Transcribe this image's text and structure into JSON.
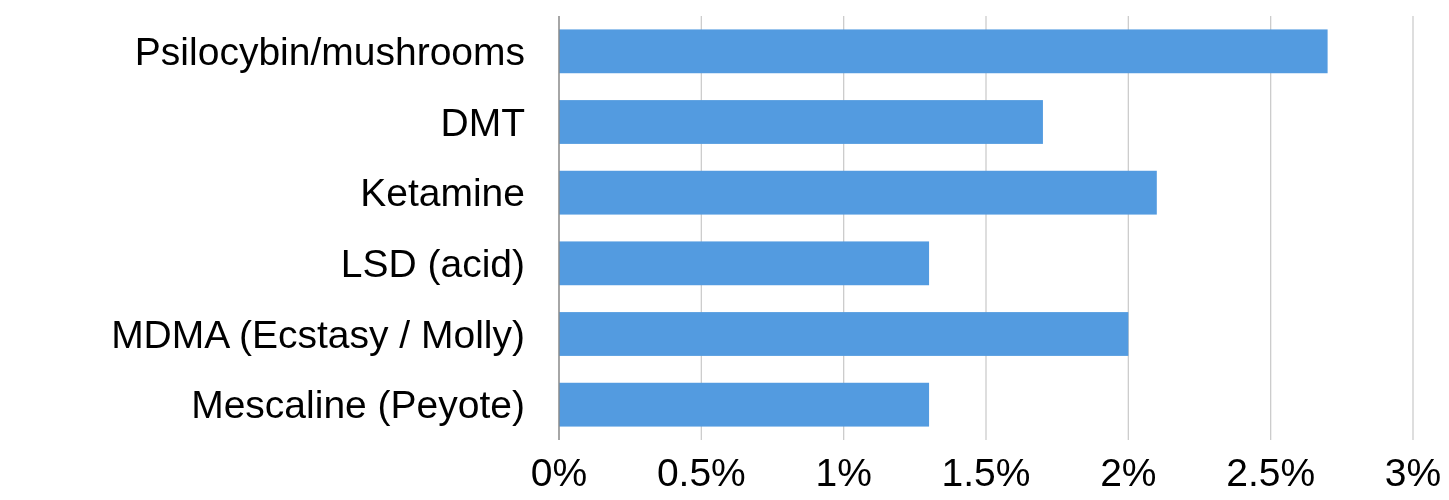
{
  "chart_data": {
    "type": "bar",
    "orientation": "horizontal",
    "categories": [
      "Psilocybin/mushrooms",
      "DMT",
      "Ketamine",
      "LSD (acid)",
      "MDMA (Ecstasy / Molly)",
      "Mescaline (Peyote)"
    ],
    "values": [
      2.7,
      1.7,
      2.1,
      1.3,
      2.0,
      1.3
    ],
    "color": "#539be0",
    "xlim": [
      0,
      3
    ],
    "xticks": [
      {
        "value": 0,
        "label": "0%"
      },
      {
        "value": 0.5,
        "label": "0.5%"
      },
      {
        "value": 1,
        "label": "1%"
      },
      {
        "value": 1.5,
        "label": "1.5%"
      },
      {
        "value": 2,
        "label": "2%"
      },
      {
        "value": 2.5,
        "label": "2.5%"
      },
      {
        "value": 3,
        "label": "3%"
      }
    ],
    "grid": "x"
  }
}
